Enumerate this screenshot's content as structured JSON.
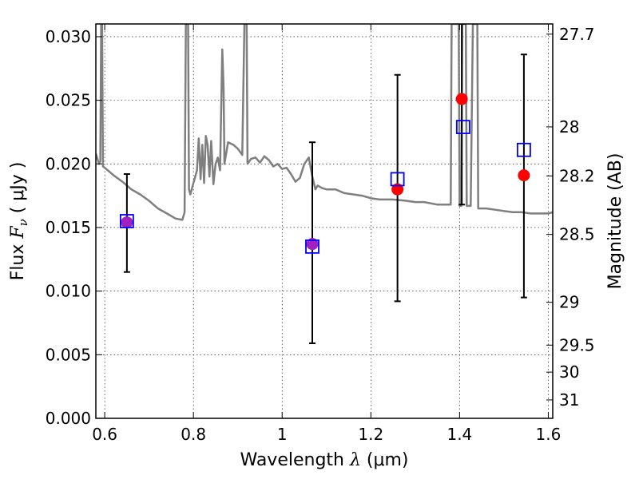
{
  "chart_data": {
    "type": "scatter",
    "xlabel": {
      "prefix": "Wavelength  ",
      "symbol": "λ",
      "units": " (μm)"
    },
    "ylabel": {
      "prefix": "Flux  ",
      "symbol": "F",
      "subscript": "ν",
      "units": "  ( μJy )"
    },
    "y2label": "Magnitude (AB)",
    "xlim": [
      0.58,
      1.61
    ],
    "ylim": [
      0.0,
      0.031
    ],
    "grid": true,
    "x_ticks": [
      {
        "value": 0.6,
        "label": "0.6"
      },
      {
        "value": 0.8,
        "label": "0.8"
      },
      {
        "value": 1.0,
        "label": "1"
      },
      {
        "value": 1.2,
        "label": "1.2"
      },
      {
        "value": 1.4,
        "label": "1.4"
      },
      {
        "value": 1.6,
        "label": "1.6"
      }
    ],
    "y_ticks": [
      {
        "value": 0.0,
        "label": "0.000"
      },
      {
        "value": 0.005,
        "label": "0.005"
      },
      {
        "value": 0.01,
        "label": "0.010"
      },
      {
        "value": 0.015,
        "label": "0.015"
      },
      {
        "value": 0.02,
        "label": "0.020"
      },
      {
        "value": 0.025,
        "label": "0.025"
      },
      {
        "value": 0.03,
        "label": "0.030"
      }
    ],
    "y2_ticks": [
      {
        "value": 27.7,
        "label": "27.7"
      },
      {
        "value": 28.0,
        "label": "28"
      },
      {
        "value": 28.2,
        "label": "28.2"
      },
      {
        "value": 28.5,
        "label": "28.5"
      },
      {
        "value": 29.0,
        "label": "29"
      },
      {
        "value": 29.5,
        "label": "29.5"
      },
      {
        "value": 30.0,
        "label": "30"
      },
      {
        "value": 31.0,
        "label": "31"
      }
    ],
    "model_spectrum": {
      "color": "#7f7f7f",
      "points": [
        [
          0.58,
          0.0208
        ],
        [
          0.587,
          0.02
        ],
        [
          0.59,
          0.0202
        ],
        [
          0.592,
          0.031
        ],
        [
          0.594,
          0.031
        ],
        [
          0.596,
          0.0198
        ],
        [
          0.6,
          0.0197
        ],
        [
          0.62,
          0.0191
        ],
        [
          0.64,
          0.0186
        ],
        [
          0.66,
          0.018
        ],
        [
          0.68,
          0.0176
        ],
        [
          0.7,
          0.0171
        ],
        [
          0.72,
          0.0165
        ],
        [
          0.74,
          0.0161
        ],
        [
          0.76,
          0.0157
        ],
        [
          0.775,
          0.0156
        ],
        [
          0.78,
          0.0162
        ],
        [
          0.783,
          0.031
        ],
        [
          0.788,
          0.031
        ],
        [
          0.79,
          0.018
        ],
        [
          0.793,
          0.0176
        ],
        [
          0.8,
          0.0185
        ],
        [
          0.808,
          0.0195
        ],
        [
          0.812,
          0.022
        ],
        [
          0.816,
          0.0188
        ],
        [
          0.82,
          0.0215
        ],
        [
          0.824,
          0.0185
        ],
        [
          0.828,
          0.0222
        ],
        [
          0.832,
          0.0215
        ],
        [
          0.836,
          0.019
        ],
        [
          0.84,
          0.0218
        ],
        [
          0.845,
          0.0184
        ],
        [
          0.85,
          0.02
        ],
        [
          0.855,
          0.0205
        ],
        [
          0.86,
          0.0195
        ],
        [
          0.865,
          0.029
        ],
        [
          0.868,
          0.026
        ],
        [
          0.87,
          0.02
        ],
        [
          0.878,
          0.0217
        ],
        [
          0.89,
          0.0215
        ],
        [
          0.9,
          0.0212
        ],
        [
          0.91,
          0.0207
        ],
        [
          0.915,
          0.031
        ],
        [
          0.92,
          0.031
        ],
        [
          0.922,
          0.02
        ],
        [
          0.93,
          0.0204
        ],
        [
          0.94,
          0.0205
        ],
        [
          0.95,
          0.0201
        ],
        [
          0.96,
          0.0206
        ],
        [
          0.97,
          0.0203
        ],
        [
          0.98,
          0.0198
        ],
        [
          0.99,
          0.02
        ],
        [
          1.0,
          0.0196
        ],
        [
          1.01,
          0.0197
        ],
        [
          1.02,
          0.0192
        ],
        [
          1.03,
          0.0186
        ],
        [
          1.04,
          0.0189
        ],
        [
          1.05,
          0.02
        ],
        [
          1.06,
          0.0205
        ],
        [
          1.068,
          0.019
        ],
        [
          1.075,
          0.018
        ],
        [
          1.08,
          0.0183
        ],
        [
          1.09,
          0.0181
        ],
        [
          1.1,
          0.018
        ],
        [
          1.12,
          0.018
        ],
        [
          1.14,
          0.0177
        ],
        [
          1.16,
          0.0176
        ],
        [
          1.18,
          0.0175
        ],
        [
          1.2,
          0.0173
        ],
        [
          1.22,
          0.0172
        ],
        [
          1.25,
          0.0172
        ],
        [
          1.28,
          0.0171
        ],
        [
          1.3,
          0.017
        ],
        [
          1.32,
          0.017
        ],
        [
          1.35,
          0.0168
        ],
        [
          1.37,
          0.0168
        ],
        [
          1.38,
          0.0168
        ],
        [
          1.382,
          0.031
        ],
        [
          1.398,
          0.031
        ],
        [
          1.4,
          0.0167
        ],
        [
          1.404,
          0.0167
        ],
        [
          1.406,
          0.031
        ],
        [
          1.414,
          0.031
        ],
        [
          1.416,
          0.0167
        ],
        [
          1.425,
          0.0167
        ],
        [
          1.43,
          0.031
        ],
        [
          1.44,
          0.031
        ],
        [
          1.442,
          0.0165
        ],
        [
          1.46,
          0.0165
        ],
        [
          1.48,
          0.0164
        ],
        [
          1.5,
          0.0163
        ],
        [
          1.52,
          0.0162
        ],
        [
          1.54,
          0.0162
        ],
        [
          1.56,
          0.0161
        ],
        [
          1.58,
          0.0161
        ],
        [
          1.6,
          0.0161
        ],
        [
          1.61,
          0.0162
        ]
      ]
    },
    "observed": {
      "color": "#ff0000",
      "points": [
        {
          "x": 0.65,
          "y": 0.0154,
          "yerr_low": 0.0115,
          "yerr_high": 0.0192
        },
        {
          "x": 1.068,
          "y": 0.0137,
          "yerr_low": 0.0059,
          "yerr_high": 0.0217
        },
        {
          "x": 1.26,
          "y": 0.018,
          "yerr_low": 0.0092,
          "yerr_high": 0.027
        },
        {
          "x": 1.405,
          "y": 0.0251,
          "yerr_low": 0.0168,
          "yerr_high": 0.031
        },
        {
          "x": 1.545,
          "y": 0.0191,
          "yerr_low": 0.0095,
          "yerr_high": 0.0286
        }
      ]
    },
    "model_photometry": {
      "color": "#0000ff",
      "points": [
        {
          "x": 0.65,
          "y": 0.0155
        },
        {
          "x": 1.068,
          "y": 0.0135
        },
        {
          "x": 1.26,
          "y": 0.0188
        },
        {
          "x": 1.408,
          "y": 0.0229
        },
        {
          "x": 1.545,
          "y": 0.0211
        }
      ]
    },
    "overlap_color": "#a020c0"
  }
}
